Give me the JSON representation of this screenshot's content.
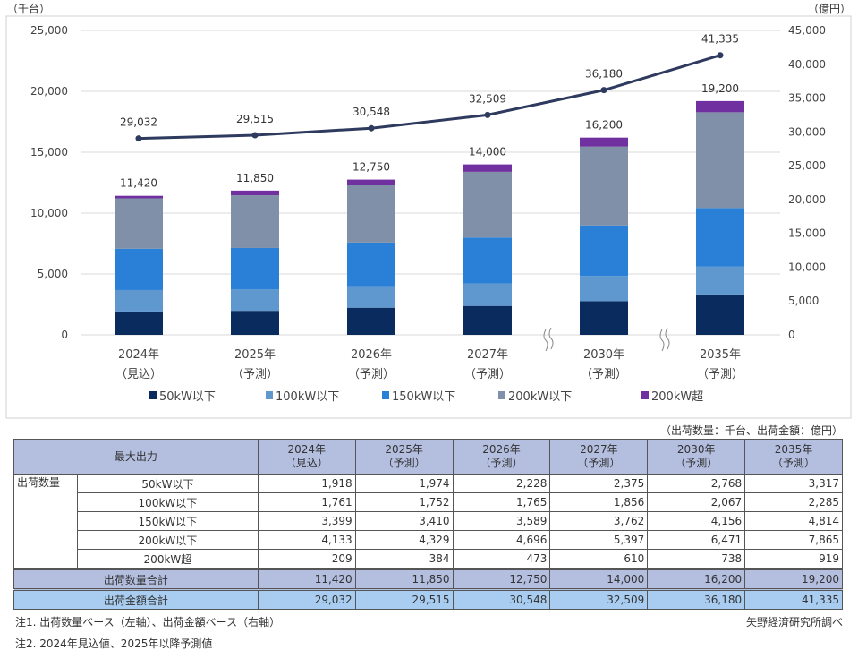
{
  "chart_data": {
    "type": "bar+line",
    "left_unit": "（千台）",
    "right_unit": "（億円）",
    "categories": [
      [
        "2024年",
        "（見込）"
      ],
      [
        "2025年",
        "（予測）"
      ],
      [
        "2026年",
        "（予測）"
      ],
      [
        "2027年",
        "（予測）"
      ],
      [
        "2030年",
        "（予測）"
      ],
      [
        "2035年",
        "（予測）"
      ]
    ],
    "left_ylim": [
      0,
      25000
    ],
    "left_ticks": [
      "0",
      "5,000",
      "10,000",
      "15,000",
      "20,000",
      "25,000"
    ],
    "right_ylim": [
      0,
      45000
    ],
    "right_ticks": [
      "0",
      "5,000",
      "10,000",
      "15,000",
      "20,000",
      "25,000",
      "30,000",
      "35,000",
      "40,000",
      "45,000"
    ],
    "series": [
      {
        "name": "50kW以下",
        "color": "#0a2b5e",
        "values": [
          1918,
          1974,
          2228,
          2375,
          2768,
          3317
        ]
      },
      {
        "name": "100kW以下",
        "color": "#5f97cf",
        "values": [
          1761,
          1752,
          1765,
          1856,
          2067,
          2285
        ]
      },
      {
        "name": "150kW以下",
        "color": "#2a7fd6",
        "values": [
          3399,
          3410,
          3589,
          3762,
          4156,
          4814
        ]
      },
      {
        "name": "200kW以下",
        "color": "#8090a8",
        "values": [
          4133,
          4329,
          4696,
          5397,
          6471,
          7865
        ]
      },
      {
        "name": "200kW超",
        "color": "#7030a0",
        "values": [
          209,
          384,
          473,
          610,
          738,
          919
        ]
      }
    ],
    "totals": [
      "11,420",
      "11,850",
      "12,750",
      "14,000",
      "16,200",
      "19,200"
    ],
    "totals_values": [
      11420,
      11850,
      12750,
      14000,
      16200,
      19200
    ],
    "line": {
      "axis": "right",
      "color": "#2e3a5e",
      "values": [
        29032,
        29515,
        30548,
        32509,
        36180,
        41335
      ],
      "labels": [
        "29,032",
        "29,515",
        "30,548",
        "32,509",
        "36,180",
        "41,335"
      ]
    },
    "axis_breaks": [
      "2027-2030",
      "2030-2035"
    ],
    "legend": "bottom",
    "grid": true
  },
  "table": {
    "unit_note": "（出荷数量：千台、出荷金額：億円）",
    "header_label": "最大出力",
    "columns": [
      [
        "2024年",
        "（見込）"
      ],
      [
        "2025年",
        "（予測）"
      ],
      [
        "2026年",
        "（予測）"
      ],
      [
        "2027年",
        "（予測）"
      ],
      [
        "2030年",
        "（予測）"
      ],
      [
        "2035年",
        "（予測）"
      ]
    ],
    "group_label": "出荷数量",
    "rows": [
      {
        "label": "50kW以下",
        "values": [
          "1,918",
          "1,974",
          "2,228",
          "2,375",
          "2,768",
          "3,317"
        ]
      },
      {
        "label": "100kW以下",
        "values": [
          "1,761",
          "1,752",
          "1,765",
          "1,856",
          "2,067",
          "2,285"
        ]
      },
      {
        "label": "150kW以下",
        "values": [
          "3,399",
          "3,410",
          "3,589",
          "3,762",
          "4,156",
          "4,814"
        ]
      },
      {
        "label": "200kW以下",
        "values": [
          "4,133",
          "4,329",
          "4,696",
          "5,397",
          "6,471",
          "7,865"
        ]
      },
      {
        "label": "200kW超",
        "values": [
          "209",
          "384",
          "473",
          "610",
          "738",
          "919"
        ]
      }
    ],
    "sum_row": {
      "label": "出荷数量合計",
      "values": [
        "11,420",
        "11,850",
        "12,750",
        "14,000",
        "16,200",
        "19,200"
      ]
    },
    "amount_row": {
      "label": "出荷金額合計",
      "values": [
        "29,032",
        "29,515",
        "30,548",
        "32,509",
        "36,180",
        "41,335"
      ]
    }
  },
  "notes": {
    "note1": "注1. 出荷数量ベース（左軸）、出荷金額ベース（右軸）",
    "note2": "注2. 2024年見込値、2025年以降予測値",
    "source": "矢野経済研究所調べ"
  }
}
